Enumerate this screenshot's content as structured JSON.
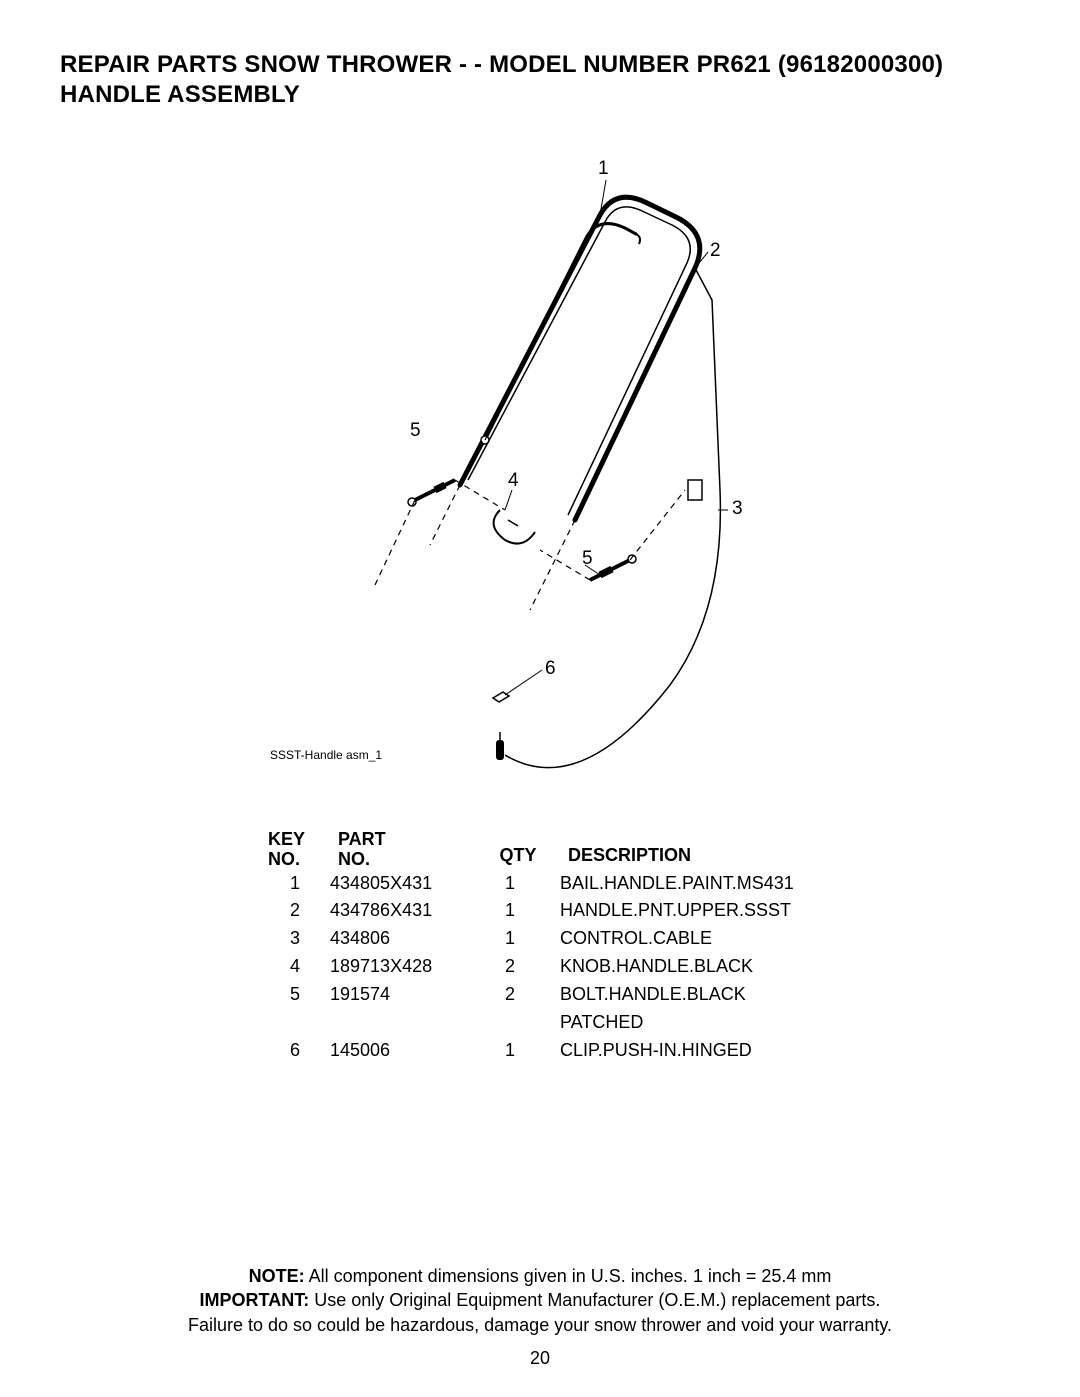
{
  "title_line1": "REPAIR PARTS  SNOW THROWER - - MODEL NUMBER  PR621 (96182000300)",
  "title_line2": "HANDLE ASSEMBLY",
  "diagram_note": "SSST-Handle asm_1",
  "callouts": {
    "c1": "1",
    "c2": "2",
    "c3": "3",
    "c4": "4",
    "c5a": "5",
    "c5b": "5",
    "c6": "6"
  },
  "table": {
    "headers": {
      "key": "KEY\nNO.",
      "part": "PART\nNO.",
      "qty": "QTY",
      "desc": "DESCRIPTION"
    },
    "rows": [
      {
        "key": "1",
        "part": "434805X431",
        "qty": "1",
        "desc": "BAIL.HANDLE.PAINT.MS431"
      },
      {
        "key": "2",
        "part": "434786X431",
        "qty": "1",
        "desc": "HANDLE.PNT.UPPER.SSST"
      },
      {
        "key": "3",
        "part": "434806",
        "qty": "1",
        "desc": "CONTROL.CABLE"
      },
      {
        "key": "4",
        "part": "189713X428",
        "qty": "2",
        "desc": "KNOB.HANDLE.BLACK"
      },
      {
        "key": "5",
        "part": "191574",
        "qty": "2",
        "desc": "BOLT.HANDLE.BLACK PATCHED"
      },
      {
        "key": "6",
        "part": "145006",
        "qty": "1",
        "desc": "CLIP.PUSH-IN.HINGED"
      }
    ]
  },
  "footer": {
    "note_label": "NOTE:",
    "note_text": "  All component dimensions given in U.S. inches.    1 inch = 25.4 mm",
    "important_label": "IMPORTANT:",
    "important_text": " Use only Original Equipment Manufacturer (O.E.M.) replacement parts.",
    "warn_text": "Failure to do so could be hazardous, damage your snow thrower and void your warranty."
  },
  "page_number": "20",
  "style": {
    "stroke": "#000000",
    "stroke_width_main": 2,
    "stroke_width_thin": 1.2,
    "stroke_width_heavy": 4,
    "dash": "6,5"
  }
}
